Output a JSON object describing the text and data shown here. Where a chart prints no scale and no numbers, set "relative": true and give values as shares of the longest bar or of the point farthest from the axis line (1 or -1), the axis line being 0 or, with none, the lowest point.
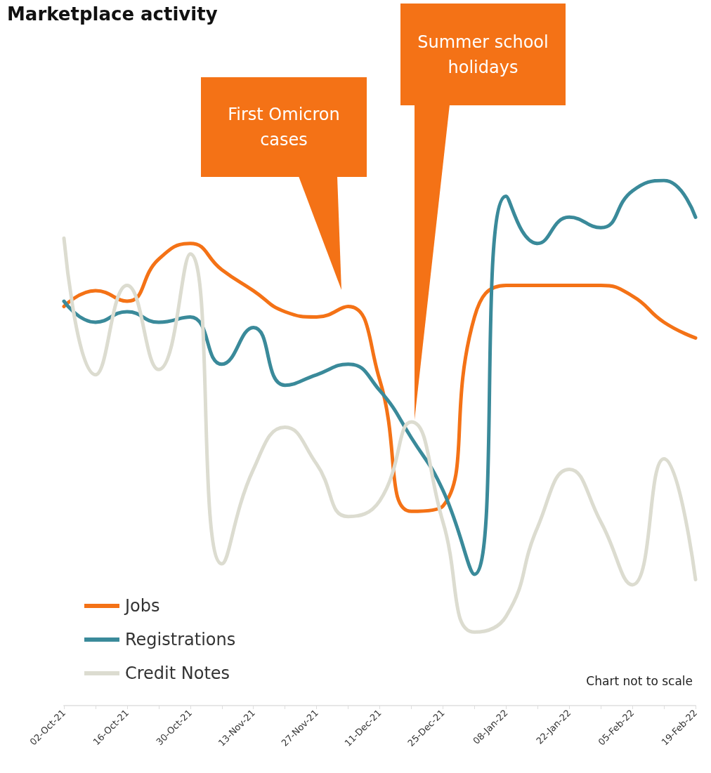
{
  "chart_data": {
    "type": "line",
    "title": "Marketplace activity",
    "relative": true,
    "categories": [
      "02-Oct-21",
      null,
      "16-Oct-21",
      null,
      "30-Oct-21",
      null,
      "13-Nov-21",
      null,
      "27-Nov-21",
      null,
      "11-Dec-21",
      null,
      "25-Dec-21",
      null,
      "08-Jan-22",
      null,
      "22-Jan-22",
      null,
      "05-Feb-22",
      null,
      "19-Feb-22"
    ],
    "series": [
      {
        "name": "Jobs",
        "color": "#f47216",
        "values": [
          0.76,
          0.79,
          0.77,
          0.85,
          0.88,
          0.83,
          0.79,
          0.75,
          0.74,
          0.76,
          0.62,
          0.37,
          0.38,
          0.74,
          0.8,
          0.8,
          0.8,
          0.8,
          0.78,
          0.73,
          0.7
        ]
      },
      {
        "name": "Registrations",
        "color": "#3a8a9a",
        "values": [
          0.77,
          0.73,
          0.75,
          0.73,
          0.74,
          0.65,
          0.72,
          0.61,
          0.63,
          0.65,
          0.6,
          0.51,
          0.41,
          0.25,
          0.97,
          0.88,
          0.93,
          0.91,
          0.98,
          1,
          0.93
        ]
      },
      {
        "name": "Credit Notes",
        "color": "#dcdcd0",
        "values": [
          0.89,
          0.63,
          0.8,
          0.64,
          0.86,
          0.27,
          0.45,
          0.53,
          0.46,
          0.36,
          0.39,
          0.54,
          0.35,
          0.14,
          0.17,
          0.34,
          0.45,
          0.35,
          0.23,
          0.47,
          0.24
        ]
      }
    ],
    "annotations": [
      "First Omicron cases",
      "Summer school holidays",
      "Chart not to scale"
    ],
    "legend": "bottom left",
    "grid": false,
    "marker": "none",
    "line_style": "solid"
  }
}
